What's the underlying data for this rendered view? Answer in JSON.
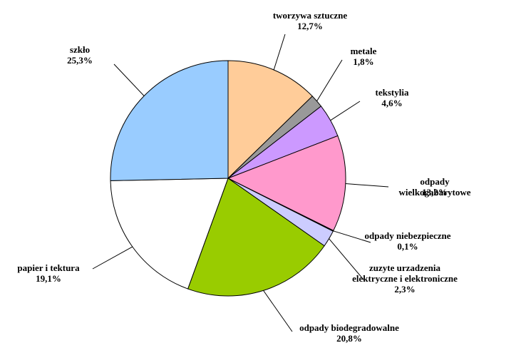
{
  "chart_data": {
    "type": "pie",
    "categories": [
      "tworzywa sztuczne",
      "metale",
      "tekstylia",
      "odpady wielkogabarytowe",
      "odpady niebezpieczne",
      "zuzyte urzadzenia\nelektryczne i elektroniczne",
      "odpady biodegradowalne",
      "papier i tektura",
      "szkło"
    ],
    "values": [
      12.7,
      1.8,
      4.6,
      13.2,
      0.1,
      2.3,
      20.8,
      19.1,
      25.3
    ],
    "value_labels": [
      "12,7%",
      "1,8%",
      "4,6%",
      "13,2%",
      "0,1%",
      "2,3%",
      "20,8%",
      "19,1%",
      "25,3%"
    ],
    "colors": [
      "#FFCC99",
      "#999999",
      "#CC99FF",
      "#FF99CC",
      "#333399",
      "#CCCCFF",
      "#99CC00",
      "#FFFFFF",
      "#99CCFF"
    ]
  }
}
